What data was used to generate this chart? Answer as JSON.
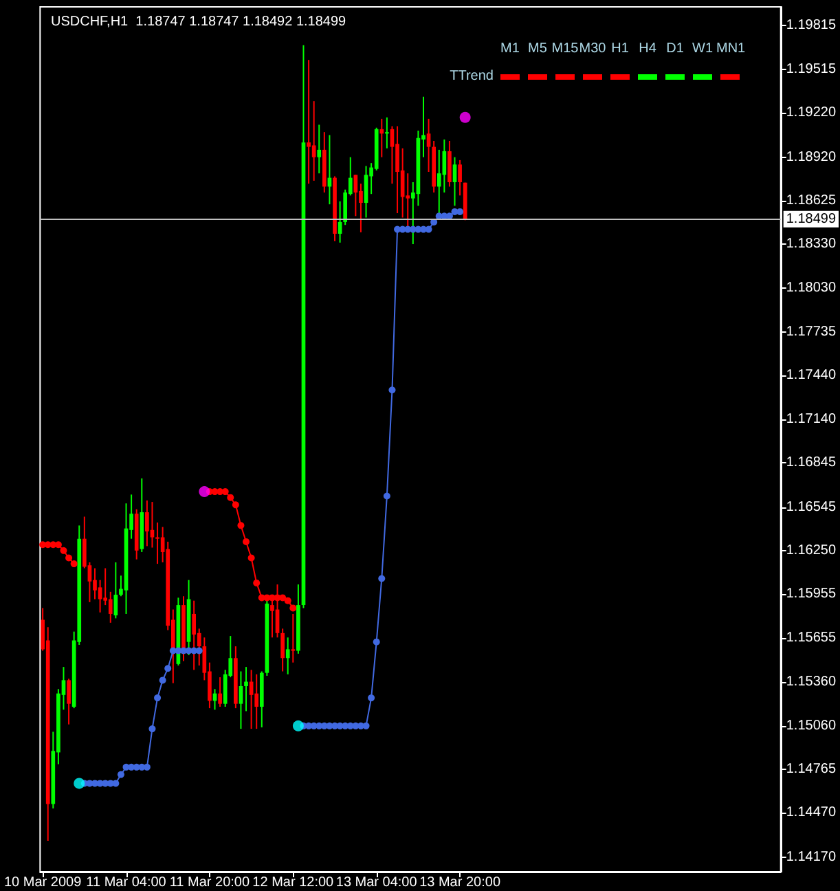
{
  "chart_data": {
    "type": "candlestick",
    "title": "USDCHF,H1  1.18747 1.18747 1.18492 1.18499",
    "categories": [
      "10 Mar 2009",
      null,
      null,
      null,
      null,
      null,
      null,
      null,
      null,
      null,
      null,
      null,
      null,
      null,
      null,
      null,
      "11 Mar 04:00",
      null,
      null,
      null,
      null,
      null,
      null,
      null,
      null,
      null,
      null,
      null,
      null,
      null,
      null,
      null,
      "11 Mar 20:00",
      null,
      null,
      null,
      null,
      null,
      null,
      null,
      null,
      null,
      null,
      null,
      null,
      null,
      null,
      null,
      "12 Mar 12:00",
      null,
      null,
      null,
      null,
      null,
      null,
      null,
      null,
      null,
      null,
      null,
      null,
      null,
      null,
      null,
      "13 Mar 04:00",
      null,
      null,
      null,
      null,
      null,
      null,
      null,
      null,
      null,
      null,
      null,
      null,
      null,
      null,
      null,
      "13 Mar 20:00",
      null,
      null,
      null,
      null,
      null,
      null,
      null,
      null,
      null,
      null,
      null,
      null,
      null,
      null,
      null,
      null,
      null,
      null,
      null,
      null,
      null,
      null,
      null,
      null,
      null,
      null,
      null,
      null,
      null,
      null,
      null,
      null,
      null,
      null,
      null,
      null,
      null,
      null,
      null,
      null,
      null,
      null,
      null,
      null,
      null,
      null,
      null,
      null,
      null,
      null,
      null,
      null,
      null,
      null,
      null,
      null,
      null,
      null,
      null,
      null,
      null
    ],
    "ohlc": [
      [
        1.1578,
        1.1586,
        1.1557,
        1.1558
      ],
      [
        1.1564,
        1.1573,
        1.1428,
        1.1453
      ],
      [
        1.1453,
        1.1502,
        1.145,
        1.1489
      ],
      [
        1.1488,
        1.1531,
        1.148,
        1.1528
      ],
      [
        1.1527,
        1.1546,
        1.1517,
        1.1537
      ],
      [
        1.1537,
        1.1538,
        1.1507,
        1.1521
      ],
      [
        1.1519,
        1.157,
        1.1518,
        1.1564
      ],
      [
        1.1563,
        1.1642,
        1.1561,
        1.1633
      ],
      [
        1.1633,
        1.1648,
        1.1613,
        1.1614
      ],
      [
        1.1615,
        1.1617,
        1.159,
        1.1604
      ],
      [
        1.1605,
        1.1613,
        1.1592,
        1.1598
      ],
      [
        1.16,
        1.1605,
        1.1583,
        1.1592
      ],
      [
        1.1593,
        1.1613,
        1.1588,
        1.1591
      ],
      [
        1.1592,
        1.1597,
        1.1576,
        1.1582
      ],
      [
        1.1581,
        1.1617,
        1.1579,
        1.1595
      ],
      [
        1.1595,
        1.1608,
        1.1594,
        1.1599
      ],
      [
        1.1598,
        1.1657,
        1.1582,
        1.164
      ],
      [
        1.1639,
        1.1663,
        1.1633,
        1.165
      ],
      [
        1.165,
        1.1653,
        1.1619,
        1.1625
      ],
      [
        1.1626,
        1.1674,
        1.1624,
        1.1651
      ],
      [
        1.1651,
        1.1659,
        1.1628,
        1.1638
      ],
      [
        1.1639,
        1.1658,
        1.1627,
        1.1634
      ],
      [
        1.1634,
        1.1644,
        1.1616,
        1.1633
      ],
      [
        1.1634,
        1.1641,
        1.1617,
        1.1624
      ],
      [
        1.1626,
        1.1631,
        1.1571,
        1.1574
      ],
      [
        1.1578,
        1.1585,
        1.1535,
        1.1557
      ],
      [
        1.1548,
        1.1593,
        1.1547,
        1.1588
      ],
      [
        1.1588,
        1.1594,
        1.155,
        1.1555
      ],
      [
        1.1563,
        1.1605,
        1.1554,
        1.1592
      ],
      [
        1.1582,
        1.1591,
        1.1544,
        1.1568
      ],
      [
        1.1569,
        1.1572,
        1.1547,
        1.156
      ],
      [
        1.156,
        1.1566,
        1.1537,
        1.1542
      ],
      [
        1.1543,
        1.1549,
        1.1518,
        1.1523
      ],
      [
        1.1523,
        1.1531,
        1.1517,
        1.1528
      ],
      [
        1.1528,
        1.1539,
        1.1519,
        1.1521
      ],
      [
        1.1521,
        1.1544,
        1.1519,
        1.1541
      ],
      [
        1.154,
        1.1567,
        1.1539,
        1.1552
      ],
      [
        1.1552,
        1.156,
        1.1518,
        1.1521
      ],
      [
        1.1521,
        1.1543,
        1.1504,
        1.1533
      ],
      [
        1.1533,
        1.1546,
        1.1516,
        1.1536
      ],
      [
        1.1536,
        1.1544,
        1.1504,
        1.1527
      ],
      [
        1.1528,
        1.1541,
        1.1504,
        1.1519
      ],
      [
        1.1519,
        1.1543,
        1.1505,
        1.1542
      ],
      [
        1.1542,
        1.1591,
        1.154,
        1.1589
      ],
      [
        1.1588,
        1.1592,
        1.1566,
        1.1584
      ],
      [
        1.1585,
        1.1602,
        1.1566,
        1.1569
      ],
      [
        1.1569,
        1.1572,
        1.1543,
        1.1552
      ],
      [
        1.1552,
        1.1566,
        1.1541,
        1.1558
      ],
      [
        1.1558,
        1.1582,
        1.1549,
        1.1557
      ],
      [
        1.1557,
        1.1602,
        1.1555,
        1.1588
      ],
      [
        1.1588,
        1.1968,
        1.1586,
        1.1902
      ],
      [
        1.1902,
        1.1958,
        1.1874,
        1.1899
      ],
      [
        1.19,
        1.193,
        1.1876,
        1.1892
      ],
      [
        1.1892,
        1.1914,
        1.1881,
        1.1897
      ],
      [
        1.1897,
        1.1909,
        1.1868,
        1.1872
      ],
      [
        1.1872,
        1.1907,
        1.186,
        1.1878
      ],
      [
        1.1878,
        1.1879,
        1.1835,
        1.184
      ],
      [
        1.184,
        1.1862,
        1.1834,
        1.1848
      ],
      [
        1.1848,
        1.187,
        1.1846,
        1.1868
      ],
      [
        1.1867,
        1.1892,
        1.1866,
        1.1878
      ],
      [
        1.188,
        1.188,
        1.1852,
        1.1868
      ],
      [
        1.1869,
        1.1874,
        1.1841,
        1.1861
      ],
      [
        1.1861,
        1.1886,
        1.1851,
        1.188
      ],
      [
        1.1879,
        1.1888,
        1.1867,
        1.1885
      ],
      [
        1.1884,
        1.1912,
        1.1883,
        1.1911
      ],
      [
        1.1911,
        1.1918,
        1.1892,
        1.1908
      ],
      [
        1.1908,
        1.1919,
        1.1898,
        1.1909
      ],
      [
        1.1911,
        1.1913,
        1.1874,
        1.1899
      ],
      [
        1.1901,
        1.1913,
        1.1854,
        1.1882
      ],
      [
        1.1883,
        1.1898,
        1.1851,
        1.1865
      ],
      [
        1.1866,
        1.1881,
        1.1844,
        1.1864
      ],
      [
        1.1864,
        1.1875,
        1.1833,
        1.1868
      ],
      [
        1.1867,
        1.191,
        1.1859,
        1.1905
      ],
      [
        1.1904,
        1.1933,
        1.1892,
        1.1907
      ],
      [
        1.1908,
        1.1918,
        1.1882,
        1.1899
      ],
      [
        1.1899,
        1.1903,
        1.1868,
        1.1872
      ],
      [
        1.1872,
        1.1897,
        1.1852,
        1.1881
      ],
      [
        1.188,
        1.1904,
        1.1868,
        1.1896
      ],
      [
        1.1896,
        1.1903,
        1.1872,
        1.1875
      ],
      [
        1.1875,
        1.1892,
        1.1859,
        1.1887
      ],
      [
        1.1887,
        1.189,
        1.1866,
        1.1875
      ],
      [
        1.18747,
        1.18747,
        1.18492,
        1.18499
      ],
      null,
      null,
      null,
      null,
      null,
      null,
      null,
      null,
      null,
      null,
      null,
      null,
      null,
      null,
      null,
      null,
      null,
      null,
      null,
      null,
      null,
      null,
      null,
      null,
      null,
      null,
      null,
      null,
      null,
      null,
      null,
      null,
      null,
      null,
      null,
      null,
      null,
      null,
      null,
      null,
      null,
      null,
      null,
      null,
      null,
      null,
      null,
      null,
      null,
      null,
      null,
      null,
      null,
      null,
      null,
      null,
      null,
      null,
      null,
      null
    ],
    "colors": [
      "#ff0000",
      "#ff0000",
      "#00ff00",
      "#00ff00",
      "#00ff00",
      "#ff0000",
      "#00ff00",
      "#00ff00",
      "#ff0000",
      "#ff0000",
      "#ff0000",
      "#ff0000",
      "#ff0000",
      "#ff0000",
      "#00ff00",
      "#00ff00",
      "#00ff00",
      "#00ff00",
      "#ff0000",
      "#00ff00",
      "#ff0000",
      "#ff0000",
      "#ff0000",
      "#ff0000",
      "#ff0000",
      "#ff0000",
      "#00ff00",
      "#ff0000",
      "#00ff00",
      "#ff0000",
      "#ff0000",
      "#ff0000",
      "#ff0000",
      "#00ff00",
      "#ff0000",
      "#00ff00",
      "#00ff00",
      "#ff0000",
      "#00ff00",
      "#00ff00",
      "#ff0000",
      "#ff0000",
      "#00ff00",
      "#00ff00",
      "#ff0000",
      "#ff0000",
      "#ff0000",
      "#00ff00",
      "#ff0000",
      "#00ff00",
      "#00ff00",
      "#ff0000",
      "#ff0000",
      "#00ff00",
      "#ff0000",
      "#00ff00",
      "#ff0000",
      "#00ff00",
      "#00ff00",
      "#00ff00",
      "#ff0000",
      "#ff0000",
      "#00ff00",
      "#00ff00",
      "#00ff00",
      "#ff0000",
      "#00ff00",
      "#ff0000",
      "#ff0000",
      "#ff0000",
      "#ff0000",
      "#00ff00",
      "#00ff00",
      "#00ff00",
      "#ff0000",
      "#ff0000",
      "#00ff00",
      "#00ff00",
      "#ff0000",
      "#00ff00",
      "#ff0000",
      "#ff0000",
      null,
      null,
      null,
      null,
      null,
      null,
      null,
      null,
      null,
      null,
      null,
      null,
      null,
      null,
      null,
      null,
      null,
      null,
      null,
      null,
      null,
      null,
      null,
      null,
      null,
      null,
      null,
      null,
      null,
      null,
      null,
      null,
      null,
      null,
      null,
      null,
      null,
      null,
      null,
      null,
      null,
      null,
      null,
      null,
      null,
      null,
      null,
      null,
      null,
      null,
      null,
      null,
      null,
      null,
      null,
      null,
      null,
      null,
      null,
      null
    ],
    "series": [
      {
        "type": "line",
        "color": "#ff0000",
        "values": [
          1.1629,
          1.1629,
          1.1629,
          1.1629,
          1.1625,
          1.162,
          1.1616,
          null,
          null,
          null,
          null,
          null,
          null,
          null,
          null,
          null,
          null,
          null,
          null,
          null,
          null,
          null,
          null,
          null,
          null,
          null,
          null,
          null,
          null,
          null,
          null,
          null,
          1.1665,
          1.1665,
          1.1665,
          1.1665,
          1.1661,
          1.1656,
          1.1642,
          1.1631,
          1.162,
          1.1603,
          1.1593,
          1.1593,
          1.1593,
          1.1593,
          1.1593,
          1.1591,
          1.1586,
          null,
          null,
          null,
          null,
          null,
          null,
          null,
          null,
          null,
          null,
          null,
          null,
          null,
          null,
          null,
          null,
          null,
          null,
          null,
          null,
          null,
          null,
          null,
          null,
          null,
          null,
          null,
          null,
          null,
          null,
          null,
          null,
          null,
          null,
          null,
          null,
          null,
          null,
          null,
          null,
          null,
          null,
          null,
          null,
          null,
          null,
          null,
          null,
          null,
          null,
          null,
          null,
          null,
          null,
          null,
          null,
          null,
          null,
          null,
          null,
          null,
          null,
          null,
          null,
          null,
          null,
          null,
          null,
          null,
          null,
          null,
          null,
          null,
          null,
          null,
          null,
          null,
          null,
          null,
          null,
          null,
          null,
          null,
          null,
          null,
          null,
          null,
          null,
          null,
          null,
          null,
          null,
          null
        ]
      },
      {
        "type": "line",
        "color": "#4169e1",
        "values": [
          null,
          null,
          null,
          null,
          null,
          null,
          null,
          null,
          1.1467,
          1.1467,
          1.1467,
          1.1467,
          1.1467,
          1.1467,
          1.1467,
          1.1473,
          1.1478,
          1.1478,
          1.1478,
          1.1478,
          1.1478,
          1.1504,
          1.1525,
          1.1537,
          1.1545,
          1.1557,
          1.1557,
          1.1557,
          1.1557,
          1.1557,
          1.1557,
          null,
          null,
          null,
          null,
          null,
          null,
          null,
          null,
          null,
          null,
          null,
          null,
          null,
          null,
          null,
          null,
          null,
          null,
          null,
          1.1506,
          1.1506,
          1.1506,
          1.1506,
          1.1506,
          1.1506,
          1.1506,
          1.1506,
          1.1506,
          1.1506,
          1.1506,
          1.1506,
          1.1506,
          1.1525,
          1.1563,
          1.1606,
          1.1662,
          1.1734,
          1.1843,
          1.1843,
          1.1843,
          1.1843,
          1.1843,
          1.1843,
          1.1843,
          1.1848,
          1.1852,
          1.1852,
          1.1852,
          1.1855,
          1.1855,
          null,
          null,
          null,
          null,
          null,
          null,
          null,
          null,
          null,
          null,
          null,
          null,
          null,
          null,
          null,
          null,
          null,
          null,
          null,
          null,
          null,
          null,
          null,
          null,
          null,
          null,
          null,
          null,
          null,
          null,
          null,
          null,
          null,
          null,
          null,
          null,
          null,
          null,
          null,
          null,
          null,
          null,
          null,
          null,
          null,
          null,
          null,
          null,
          null,
          null,
          null,
          null,
          null,
          null,
          null,
          null,
          null,
          null,
          null,
          null,
          null
        ]
      },
      {
        "type": "scatter",
        "color": "#ff00ff",
        "values": [
          null,
          null,
          null,
          null,
          null,
          null,
          null,
          null,
          null,
          null,
          null,
          null,
          null,
          null,
          null,
          null,
          null,
          null,
          null,
          null,
          null,
          null,
          null,
          null,
          null,
          null,
          null,
          null,
          null,
          null,
          null,
          1.1665,
          null,
          null,
          null,
          null,
          null,
          null,
          null,
          null,
          null,
          null,
          null,
          null,
          null,
          null,
          null,
          null,
          null,
          null,
          null,
          null,
          null,
          null,
          null,
          null,
          null,
          null,
          null,
          null,
          null,
          null,
          null,
          null,
          null,
          null,
          null,
          null,
          null,
          null,
          null,
          null,
          null,
          null,
          null,
          null,
          null,
          null,
          null,
          null,
          null,
          1.1919,
          null,
          null,
          null,
          null,
          null,
          null,
          null,
          null,
          null,
          null,
          null,
          null,
          null,
          null,
          null,
          null,
          null,
          null,
          null,
          null,
          null,
          null,
          null,
          null,
          null,
          null,
          null,
          null,
          null,
          null,
          null,
          null,
          null,
          null,
          null,
          null,
          null,
          null,
          null,
          null,
          null,
          null,
          null,
          null,
          null,
          null,
          null,
          null,
          null,
          null,
          null,
          null,
          null,
          null,
          null,
          null,
          null,
          null,
          null,
          null
        ]
      },
      {
        "type": "scatter",
        "color": "#00ffff",
        "values": [
          null,
          null,
          null,
          null,
          null,
          null,
          null,
          1.1467,
          null,
          null,
          null,
          null,
          null,
          null,
          null,
          null,
          null,
          null,
          null,
          null,
          null,
          null,
          null,
          null,
          null,
          null,
          null,
          null,
          null,
          null,
          null,
          null,
          null,
          null,
          null,
          null,
          null,
          null,
          null,
          null,
          null,
          null,
          null,
          null,
          null,
          null,
          null,
          null,
          null,
          1.1506,
          null,
          null,
          null,
          null,
          null,
          null,
          null,
          null,
          null,
          null,
          null,
          null,
          null,
          null,
          null,
          null,
          null,
          null,
          null,
          null,
          null,
          null,
          null,
          null,
          null,
          null,
          null,
          null,
          null,
          null,
          null,
          null,
          null,
          null,
          null,
          null,
          null,
          null,
          null,
          null,
          null,
          null,
          null,
          null,
          null,
          null,
          null,
          null,
          null,
          null,
          null,
          null,
          null,
          null,
          null,
          null,
          null,
          null,
          null,
          null,
          null,
          null,
          null,
          null,
          null,
          null,
          null,
          null,
          null,
          null,
          null,
          null,
          null,
          null,
          null,
          null,
          null,
          null,
          null,
          null,
          null,
          null,
          null,
          null,
          null,
          null,
          null,
          null,
          null,
          null,
          null,
          null
        ]
      }
    ],
    "ylim": [
      1.1407,
      1.1994
    ],
    "yticks": [
      1.19815,
      1.19515,
      {
        "value": 1.1922,
        "label": "1.19220"
      },
      {
        "value": 1.1892,
        "label": "1.18920"
      },
      1.18625,
      {
        "value": 1.1833,
        "label": "1.18330"
      },
      {
        "value": 1.1803,
        "label": "1.18030"
      },
      1.17735,
      {
        "value": 1.1744,
        "label": "1.17440"
      },
      {
        "value": 1.1714,
        "label": "1.17140"
      },
      1.16845,
      1.16545,
      {
        "value": 1.1625,
        "label": "1.16250"
      },
      1.15955,
      1.15655,
      {
        "value": 1.1536,
        "label": "1.15360"
      },
      {
        "value": 1.1506,
        "label": "1.15060"
      },
      1.14765,
      {
        "value": 1.1447,
        "label": "1.14470"
      },
      {
        "value": 1.1417,
        "label": "1.14170"
      }
    ],
    "ref_lines": [
      {
        "axis": "y",
        "value": 1.18499,
        "label": "1.18499",
        "color": "#c0c0c0"
      }
    ],
    "annotations": [
      "TTrend",
      "M1",
      "M5",
      "M15",
      "M30",
      "H1",
      "H4",
      "D1",
      "W1",
      "MN1"
    ],
    "marker": "circle",
    "grid": false
  }
}
